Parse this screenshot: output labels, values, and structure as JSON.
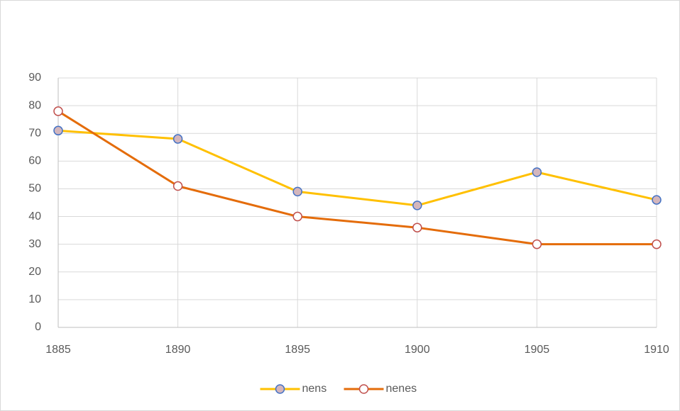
{
  "chart_data": {
    "type": "line",
    "x": [
      1885,
      1890,
      1895,
      1900,
      1905,
      1910
    ],
    "xlim": [
      1885,
      1910
    ],
    "xticks": [
      1885,
      1890,
      1895,
      1900,
      1905,
      1910
    ],
    "ylim": [
      0,
      90
    ],
    "yticks": [
      0,
      10,
      20,
      30,
      40,
      50,
      60,
      70,
      80,
      90
    ],
    "grid": true,
    "legend": "bottom",
    "series": [
      {
        "name": "nens",
        "color": "#ffc000",
        "marker_fill": "#d3b6bd",
        "marker_edge": "#4472c4",
        "values": [
          71,
          68,
          49,
          44,
          56,
          46
        ]
      },
      {
        "name": "nenes",
        "color": "#e46c0a",
        "marker_fill": "#ffffff",
        "marker_edge": "#c0504d",
        "values": [
          78,
          51,
          40,
          36,
          30,
          30
        ]
      }
    ]
  }
}
